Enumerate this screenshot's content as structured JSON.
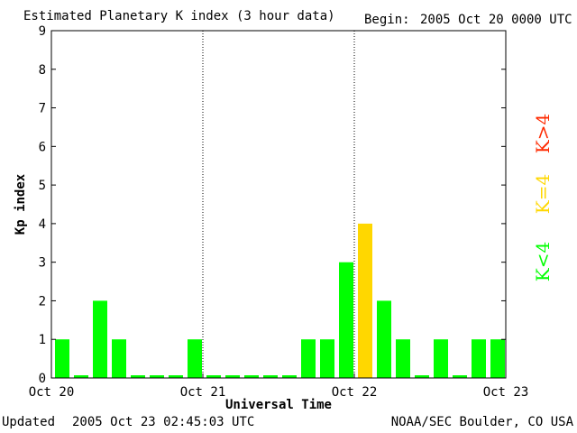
{
  "header": {
    "title": "Estimated Planetary K index (3 hour data)",
    "begin_label": "Begin:",
    "begin_value": "2005 Oct 20 0000 UTC"
  },
  "footer": {
    "updated_label": "Updated",
    "updated_value": "2005 Oct 23 02:45:03 UTC",
    "credit": "NOAA/SEC Boulder, CO USA"
  },
  "chart_data": {
    "type": "bar",
    "xlabel": "Universal Time",
    "ylabel": "Kp index",
    "ylim": [
      0,
      9
    ],
    "yticks": [
      0,
      1,
      2,
      3,
      4,
      5,
      6,
      7,
      8,
      9
    ],
    "x_tick_labels": [
      "Oct 20",
      "Oct 21",
      "Oct 22",
      "Oct 23"
    ],
    "day_dividers": [
      "Oct 21",
      "Oct 22"
    ],
    "bar_interval": "3 hour",
    "values": [
      1,
      0,
      2,
      1,
      0,
      0,
      0,
      1,
      0,
      0,
      0,
      0,
      0,
      1,
      1,
      3,
      4,
      2,
      1,
      0,
      1,
      0,
      1,
      1
    ],
    "legend": [
      {
        "label": "K<4",
        "color": "#00ff00"
      },
      {
        "label": "K=4",
        "color": "#ffd700"
      },
      {
        "label": "K>4",
        "color": "#ff2a00"
      }
    ],
    "colors": {
      "low": "#00ff00",
      "mid": "#ffd700",
      "high": "#ff2a00"
    }
  }
}
